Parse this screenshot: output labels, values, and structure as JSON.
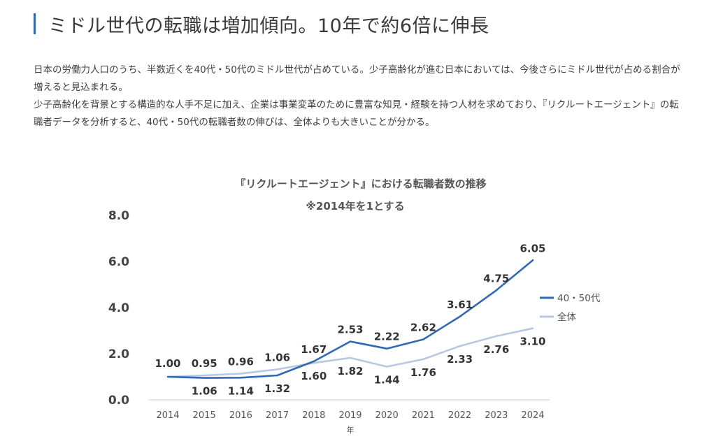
{
  "header": {
    "title": "ミドル世代の転職は増加傾向。10年で約6倍に伸長"
  },
  "intro": {
    "paragraphs": [
      "日本の労働力人口のうち、半数近くを40代・50代のミドル世代が占めている。少子高齢化が進む日本においては、今後さらにミドル世代が占める割合が増えると見込まれる。",
      "少子高齢化を背景とする構造的な人手不足に加え、企業は事業変革のために豊富な知見・経験を持つ人材を求めており、『リクルートエージェント』の転職者データを分析すると、40代・50代の転職者数の伸びは、全体よりも大きいことが分かる。"
    ]
  },
  "chart_data": {
    "type": "line",
    "title": "『リクルートエージェント』における転職者数の推移",
    "subtitle": "※2014年を1とする",
    "xlabel": "年",
    "ylabel": "",
    "categories": [
      "2014",
      "2015",
      "2016",
      "2017",
      "2018",
      "2019",
      "2020",
      "2021",
      "2022",
      "2023",
      "2024"
    ],
    "ylim": [
      0,
      8
    ],
    "yticks": [
      "0.0",
      "2.0",
      "4.0",
      "6.0",
      "8.0"
    ],
    "grid": false,
    "legend_position": "right",
    "series": [
      {
        "name": "40・50代",
        "color": "#2f6ab5",
        "values": [
          1.0,
          0.95,
          0.96,
          1.06,
          1.67,
          2.53,
          2.22,
          2.62,
          3.61,
          4.75,
          6.05
        ],
        "labels": [
          "1.00",
          "0.95",
          "0.96",
          "1.06",
          "1.67",
          "2.53",
          "2.22",
          "2.62",
          "3.61",
          "4.75",
          "6.05"
        ]
      },
      {
        "name": "全体",
        "color": "#b8c8e0",
        "values": [
          1.0,
          1.06,
          1.14,
          1.32,
          1.6,
          1.82,
          1.44,
          1.76,
          2.33,
          2.76,
          3.1
        ],
        "labels": [
          "",
          "1.06",
          "1.14",
          "1.32",
          "1.60",
          "1.82",
          "1.44",
          "1.76",
          "2.33",
          "2.76",
          "3.10"
        ]
      }
    ]
  }
}
